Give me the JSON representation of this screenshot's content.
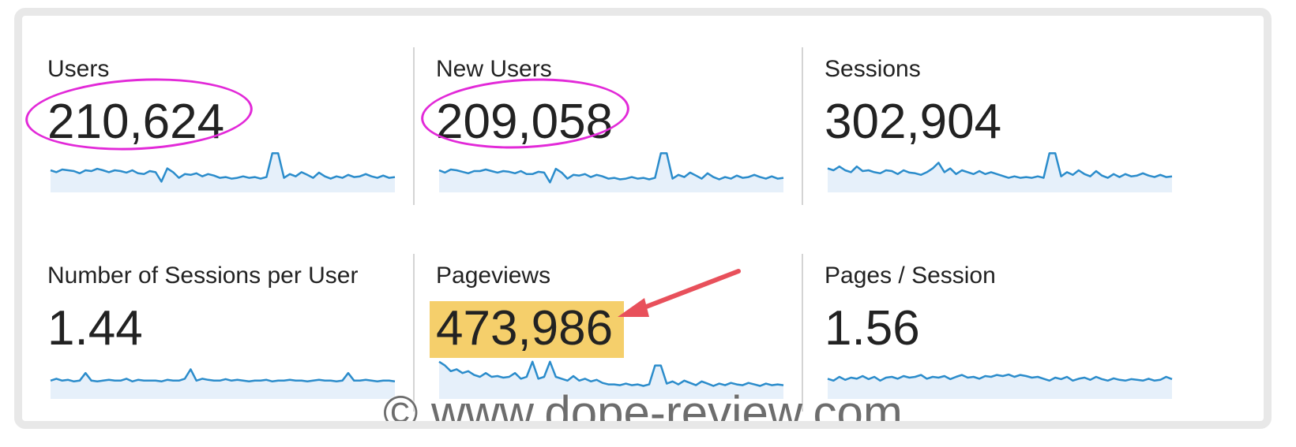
{
  "metrics": [
    {
      "label": "Users",
      "value": "210,624",
      "circled": true,
      "highlighted": false,
      "spark": [
        0.5,
        0.55,
        0.48,
        0.5,
        0.52,
        0.58,
        0.5,
        0.52,
        0.46,
        0.5,
        0.55,
        0.5,
        0.52,
        0.56,
        0.5,
        0.58,
        0.6,
        0.52,
        0.55,
        0.8,
        0.45,
        0.55,
        0.7,
        0.6,
        0.62,
        0.58,
        0.66,
        0.6,
        0.64,
        0.7,
        0.68,
        0.72,
        0.7,
        0.66,
        0.7,
        0.68,
        0.72,
        0.68,
        0.05,
        0.05,
        0.7,
        0.6,
        0.66,
        0.55,
        0.62,
        0.7,
        0.56,
        0.66,
        0.72,
        0.66,
        0.7,
        0.62,
        0.68,
        0.66,
        0.6,
        0.66,
        0.7,
        0.64,
        0.7,
        0.68
      ]
    },
    {
      "label": "New Users",
      "value": "209,058",
      "circled": true,
      "highlighted": false,
      "spark": [
        0.5,
        0.56,
        0.48,
        0.5,
        0.54,
        0.58,
        0.52,
        0.52,
        0.48,
        0.52,
        0.56,
        0.52,
        0.54,
        0.58,
        0.52,
        0.6,
        0.6,
        0.54,
        0.56,
        0.82,
        0.46,
        0.56,
        0.72,
        0.62,
        0.64,
        0.6,
        0.68,
        0.62,
        0.66,
        0.72,
        0.7,
        0.74,
        0.72,
        0.68,
        0.72,
        0.7,
        0.74,
        0.7,
        0.05,
        0.05,
        0.72,
        0.62,
        0.68,
        0.56,
        0.64,
        0.72,
        0.58,
        0.68,
        0.74,
        0.68,
        0.72,
        0.64,
        0.7,
        0.68,
        0.62,
        0.68,
        0.72,
        0.66,
        0.72,
        0.7
      ]
    },
    {
      "label": "Sessions",
      "value": "302,904",
      "circled": false,
      "highlighted": false,
      "spark": [
        0.45,
        0.5,
        0.4,
        0.5,
        0.55,
        0.4,
        0.52,
        0.5,
        0.55,
        0.58,
        0.5,
        0.52,
        0.6,
        0.5,
        0.56,
        0.58,
        0.62,
        0.55,
        0.45,
        0.3,
        0.55,
        0.45,
        0.6,
        0.5,
        0.55,
        0.6,
        0.52,
        0.6,
        0.55,
        0.6,
        0.65,
        0.7,
        0.66,
        0.7,
        0.68,
        0.7,
        0.66,
        0.7,
        0.05,
        0.05,
        0.66,
        0.55,
        0.62,
        0.5,
        0.6,
        0.66,
        0.52,
        0.64,
        0.7,
        0.6,
        0.68,
        0.6,
        0.66,
        0.64,
        0.58,
        0.64,
        0.68,
        0.62,
        0.68,
        0.66
      ]
    },
    {
      "label": "Number of Sessions per User",
      "value": "1.44",
      "circled": false,
      "highlighted": false,
      "spark": [
        0.6,
        0.55,
        0.6,
        0.58,
        0.62,
        0.6,
        0.4,
        0.6,
        0.62,
        0.6,
        0.58,
        0.6,
        0.6,
        0.55,
        0.62,
        0.58,
        0.6,
        0.6,
        0.6,
        0.62,
        0.58,
        0.6,
        0.6,
        0.55,
        0.3,
        0.6,
        0.55,
        0.58,
        0.6,
        0.6,
        0.56,
        0.6,
        0.58,
        0.6,
        0.62,
        0.6,
        0.6,
        0.58,
        0.62,
        0.6,
        0.6,
        0.58,
        0.6,
        0.6,
        0.62,
        0.6,
        0.58,
        0.6,
        0.6,
        0.62,
        0.6,
        0.4,
        0.6,
        0.6,
        0.58,
        0.6,
        0.62,
        0.6,
        0.6,
        0.62
      ]
    },
    {
      "label": "Pageviews",
      "value": "473,986",
      "circled": false,
      "highlighted": true,
      "spark": [
        0.1,
        0.2,
        0.35,
        0.3,
        0.4,
        0.35,
        0.45,
        0.5,
        0.4,
        0.5,
        0.48,
        0.52,
        0.5,
        0.4,
        0.55,
        0.5,
        0.1,
        0.55,
        0.5,
        0.1,
        0.5,
        0.55,
        0.6,
        0.48,
        0.6,
        0.55,
        0.62,
        0.58,
        0.66,
        0.7,
        0.7,
        0.72,
        0.68,
        0.72,
        0.7,
        0.74,
        0.7,
        0.2,
        0.2,
        0.68,
        0.62,
        0.7,
        0.6,
        0.66,
        0.72,
        0.62,
        0.68,
        0.74,
        0.68,
        0.72,
        0.66,
        0.7,
        0.72,
        0.66,
        0.7,
        0.74,
        0.68,
        0.72,
        0.7,
        0.72
      ]
    },
    {
      "label": "Pages / Session",
      "value": "1.56",
      "circled": false,
      "highlighted": false,
      "spark": [
        0.55,
        0.6,
        0.5,
        0.58,
        0.52,
        0.55,
        0.48,
        0.56,
        0.5,
        0.6,
        0.52,
        0.5,
        0.55,
        0.48,
        0.52,
        0.5,
        0.45,
        0.55,
        0.5,
        0.52,
        0.48,
        0.56,
        0.5,
        0.45,
        0.52,
        0.5,
        0.55,
        0.48,
        0.5,
        0.45,
        0.48,
        0.44,
        0.5,
        0.45,
        0.48,
        0.52,
        0.5,
        0.55,
        0.6,
        0.52,
        0.56,
        0.5,
        0.6,
        0.55,
        0.52,
        0.58,
        0.5,
        0.56,
        0.6,
        0.54,
        0.58,
        0.6,
        0.56,
        0.58,
        0.6,
        0.55,
        0.6,
        0.58,
        0.5,
        0.56
      ]
    }
  ],
  "watermark": "© www.dope-review.com",
  "colors": {
    "spark_line": "#2b8ccb",
    "spark_fill": "#e6f0fa",
    "circle": "#e229d8",
    "highlight": "#f5cf6b",
    "arrow": "#e8505b"
  }
}
